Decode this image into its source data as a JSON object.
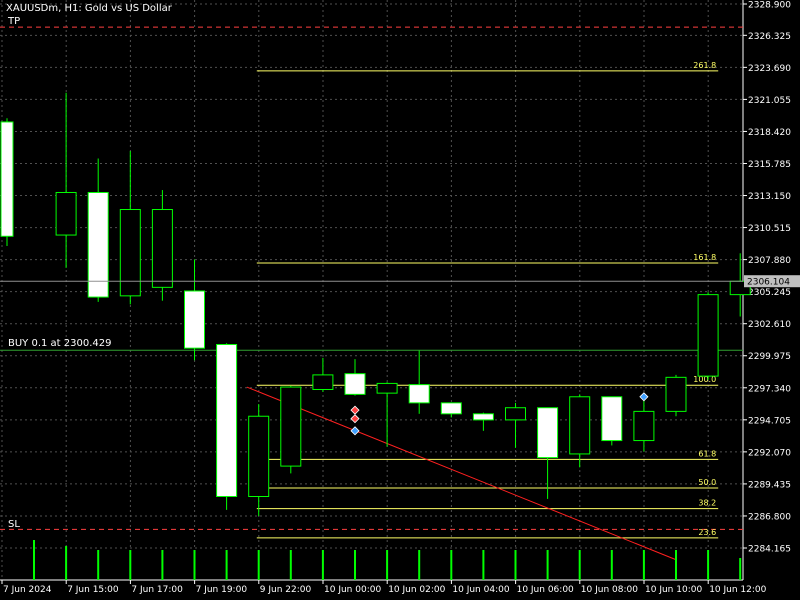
{
  "window": {
    "symbol_title": "XAUUSDm, H1:  Gold vs US Dollar"
  },
  "labels": {
    "tp": "TP",
    "sl": "SL",
    "buy": "BUY 0.1 at 2300.429"
  },
  "colors": {
    "background": "#000000",
    "grid": "#505050",
    "candle_outline": "#00ff00",
    "candle_fill_bull": "#000000",
    "candle_fill_bear": "#ffffff",
    "fib": "#ffff66",
    "trend": "#ff2020",
    "tp_sl": "#ff4040",
    "axis_text": "#ffffff",
    "current_price_bg": "#c0c0c0",
    "current_price_text": "#000000"
  },
  "chart_data": {
    "type": "candlestick",
    "symbol": "XAUUSDm",
    "timeframe": "H1",
    "price_range": [
      2282.5,
      2328.9
    ],
    "y_ticks": [
      2328.9,
      2326.325,
      2323.69,
      2321.055,
      2318.42,
      2315.785,
      2313.15,
      2310.515,
      2307.88,
      2305.245,
      2302.61,
      2299.975,
      2297.34,
      2294.705,
      2292.07,
      2289.435,
      2286.8,
      2284.165
    ],
    "x_ticks": [
      "7 Jun 2024",
      "7 Jun 15:00",
      "7 Jun 17:00",
      "7 Jun 19:00",
      "9 Jun 22:00",
      "10 Jun 00:00",
      "10 Jun 02:00",
      "10 Jun 04:00",
      "10 Jun 06:00",
      "10 Jun 08:00",
      "10 Jun 10:00",
      "10 Jun 12:00"
    ],
    "candles": [
      {
        "o": 2319.2,
        "h": 2319.5,
        "l": 2309.0,
        "c": 2309.8
      },
      {
        "o": 2309.9,
        "h": 2321.6,
        "l": 2307.2,
        "c": 2313.4
      },
      {
        "o": 2313.4,
        "h": 2316.2,
        "l": 2304.4,
        "c": 2304.8
      },
      {
        "o": 2304.9,
        "h": 2316.8,
        "l": 2304.2,
        "c": 2312.0
      },
      {
        "o": 2305.6,
        "h": 2313.6,
        "l": 2304.5,
        "c": 2312.0
      },
      {
        "o": 2305.3,
        "h": 2307.9,
        "l": 2299.6,
        "c": 2300.6
      },
      {
        "o": 2300.9,
        "h": 2301.0,
        "l": 2287.3,
        "c": 2288.4
      },
      {
        "o": 2288.4,
        "h": 2296.0,
        "l": 2286.8,
        "c": 2295.0
      },
      {
        "o": 2290.9,
        "h": 2297.5,
        "l": 2290.3,
        "c": 2297.4
      },
      {
        "o": 2297.2,
        "h": 2299.8,
        "l": 2297.0,
        "c": 2298.4
      },
      {
        "o": 2298.5,
        "h": 2299.7,
        "l": 2296.7,
        "c": 2296.8
      },
      {
        "o": 2296.9,
        "h": 2297.8,
        "l": 2292.5,
        "c": 2297.7
      },
      {
        "o": 2297.6,
        "h": 2300.4,
        "l": 2295.2,
        "c": 2296.1
      },
      {
        "o": 2296.1,
        "h": 2296.1,
        "l": 2294.9,
        "c": 2295.2
      },
      {
        "o": 2295.2,
        "h": 2295.3,
        "l": 2293.8,
        "c": 2294.7
      },
      {
        "o": 2294.7,
        "h": 2296.1,
        "l": 2292.4,
        "c": 2295.7
      },
      {
        "o": 2295.7,
        "h": 2295.7,
        "l": 2288.2,
        "c": 2291.6
      },
      {
        "o": 2291.9,
        "h": 2296.8,
        "l": 2290.8,
        "c": 2296.6
      },
      {
        "o": 2296.6,
        "h": 2296.6,
        "l": 2292.6,
        "c": 2293.0
      },
      {
        "o": 2293.0,
        "h": 2296.5,
        "l": 2292.1,
        "c": 2295.4
      },
      {
        "o": 2295.4,
        "h": 2298.4,
        "l": 2295.0,
        "c": 2298.2
      },
      {
        "o": 2298.3,
        "h": 2305.2,
        "l": 2298.0,
        "c": 2305.0
      },
      {
        "o": 2305.0,
        "h": 2308.4,
        "l": 2303.2,
        "c": 2306.1
      }
    ],
    "current_price": 2306.104,
    "tp_price": 2327.0,
    "sl_price": 2285.7,
    "buy_price": 2300.429,
    "fib_levels": [
      {
        "label": "261.8",
        "price": 2323.4
      },
      {
        "label": "161.8",
        "price": 2307.6
      },
      {
        "label": "100.0",
        "price": 2297.55
      },
      {
        "label": "61.8",
        "price": 2291.45
      },
      {
        "label": "50.0",
        "price": 2289.1
      },
      {
        "label": "38.2",
        "price": 2287.4
      },
      {
        "label": "23.6",
        "price": 2285.0
      }
    ],
    "fib_start_index": 8,
    "fib_end_index": 22,
    "trendline": {
      "start_index": 8,
      "start_price": 2297.4,
      "end_index": 21,
      "end_price": 2283.2
    },
    "trade_markers": [
      {
        "index": 10,
        "price": 2295.5,
        "kind": "sell"
      },
      {
        "index": 10,
        "price": 2294.8,
        "kind": "sell"
      },
      {
        "index": 10,
        "price": 2293.8,
        "kind": "buy"
      },
      {
        "index": 19,
        "price": 2296.6,
        "kind": "buy"
      }
    ],
    "volumes": [
      40,
      34,
      30,
      30,
      30,
      30,
      30,
      30,
      30,
      30,
      30,
      30,
      30,
      30,
      30,
      30,
      30,
      30,
      30,
      30,
      30,
      30,
      22
    ]
  }
}
